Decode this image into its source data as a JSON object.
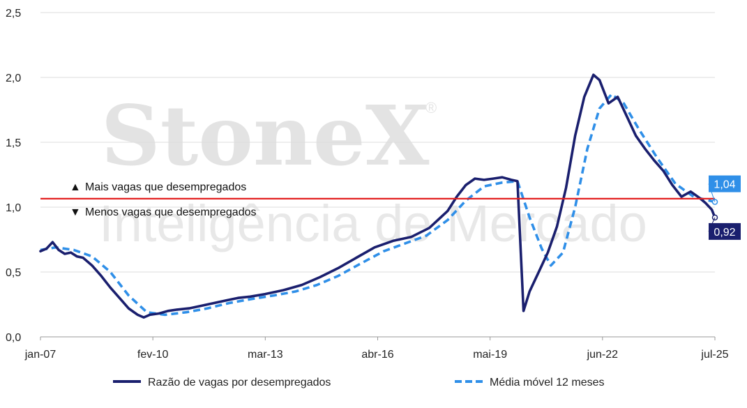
{
  "chart_data": {
    "type": "line",
    "title": "",
    "xlabel": "",
    "ylabel": "",
    "ylim": [
      0,
      2.5
    ],
    "y_ticks": [
      "0,0",
      "0,5",
      "1,0",
      "1,5",
      "2,0",
      "2,5"
    ],
    "x_ticks": [
      "jan-07",
      "fev-10",
      "mar-13",
      "abr-16",
      "mai-19",
      "jun-22",
      "jul-25"
    ],
    "grid": "horizontal",
    "legend_position": "bottom",
    "series": [
      {
        "name": "Razão de vagas por desempregados",
        "color": "#1a1f6e",
        "style": "solid",
        "points": [
          [
            "2007-01",
            0.66
          ],
          [
            "2007-03",
            0.68
          ],
          [
            "2007-05",
            0.73
          ],
          [
            "2007-07",
            0.67
          ],
          [
            "2007-09",
            0.64
          ],
          [
            "2007-11",
            0.65
          ],
          [
            "2008-01",
            0.62
          ],
          [
            "2008-03",
            0.61
          ],
          [
            "2008-06",
            0.55
          ],
          [
            "2008-09",
            0.47
          ],
          [
            "2008-12",
            0.38
          ],
          [
            "2009-03",
            0.3
          ],
          [
            "2009-06",
            0.22
          ],
          [
            "2009-09",
            0.17
          ],
          [
            "2009-11",
            0.15
          ],
          [
            "2010-01",
            0.17
          ],
          [
            "2010-04",
            0.18
          ],
          [
            "2010-07",
            0.2
          ],
          [
            "2010-10",
            0.21
          ],
          [
            "2011-02",
            0.22
          ],
          [
            "2011-06",
            0.24
          ],
          [
            "2011-10",
            0.26
          ],
          [
            "2012-02",
            0.28
          ],
          [
            "2012-06",
            0.3
          ],
          [
            "2012-10",
            0.31
          ],
          [
            "2013-03",
            0.33
          ],
          [
            "2013-09",
            0.36
          ],
          [
            "2014-03",
            0.4
          ],
          [
            "2014-09",
            0.46
          ],
          [
            "2015-03",
            0.53
          ],
          [
            "2015-09",
            0.61
          ],
          [
            "2016-03",
            0.69
          ],
          [
            "2016-09",
            0.74
          ],
          [
            "2017-03",
            0.77
          ],
          [
            "2017-09",
            0.84
          ],
          [
            "2018-03",
            0.97
          ],
          [
            "2018-06",
            1.08
          ],
          [
            "2018-09",
            1.17
          ],
          [
            "2018-12",
            1.22
          ],
          [
            "2019-03",
            1.21
          ],
          [
            "2019-06",
            1.22
          ],
          [
            "2019-09",
            1.23
          ],
          [
            "2019-12",
            1.21
          ],
          [
            "2020-02",
            1.2
          ],
          [
            "2020-04",
            0.2
          ],
          [
            "2020-06",
            0.35
          ],
          [
            "2020-09",
            0.5
          ],
          [
            "2020-12",
            0.65
          ],
          [
            "2021-03",
            0.85
          ],
          [
            "2021-06",
            1.15
          ],
          [
            "2021-09",
            1.55
          ],
          [
            "2021-12",
            1.85
          ],
          [
            "2022-03",
            2.02
          ],
          [
            "2022-05",
            1.98
          ],
          [
            "2022-08",
            1.8
          ],
          [
            "2022-11",
            1.85
          ],
          [
            "2023-02",
            1.7
          ],
          [
            "2023-05",
            1.55
          ],
          [
            "2023-08",
            1.45
          ],
          [
            "2023-11",
            1.36
          ],
          [
            "2024-02",
            1.28
          ],
          [
            "2024-05",
            1.17
          ],
          [
            "2024-08",
            1.08
          ],
          [
            "2024-11",
            1.12
          ],
          [
            "2025-02",
            1.07
          ],
          [
            "2025-04",
            1.03
          ],
          [
            "2025-06",
            0.98
          ],
          [
            "2025-07",
            0.92
          ]
        ]
      },
      {
        "name": "Média móvel 12 meses",
        "color": "#2f8fe8",
        "style": "dashed",
        "points": [
          [
            "2007-01",
            0.67
          ],
          [
            "2007-06",
            0.69
          ],
          [
            "2007-12",
            0.67
          ],
          [
            "2008-06",
            0.62
          ],
          [
            "2008-12",
            0.5
          ],
          [
            "2009-06",
            0.32
          ],
          [
            "2009-12",
            0.19
          ],
          [
            "2010-06",
            0.17
          ],
          [
            "2011-01",
            0.19
          ],
          [
            "2011-08",
            0.22
          ],
          [
            "2012-03",
            0.26
          ],
          [
            "2012-10",
            0.29
          ],
          [
            "2013-06",
            0.32
          ],
          [
            "2014-01",
            0.35
          ],
          [
            "2014-08",
            0.4
          ],
          [
            "2015-03",
            0.47
          ],
          [
            "2015-10",
            0.56
          ],
          [
            "2016-06",
            0.66
          ],
          [
            "2017-01",
            0.72
          ],
          [
            "2017-08",
            0.78
          ],
          [
            "2018-03",
            0.9
          ],
          [
            "2018-09",
            1.05
          ],
          [
            "2019-03",
            1.16
          ],
          [
            "2019-09",
            1.19
          ],
          [
            "2020-02",
            1.2
          ],
          [
            "2020-06",
            0.92
          ],
          [
            "2020-10",
            0.68
          ],
          [
            "2021-01",
            0.55
          ],
          [
            "2021-05",
            0.65
          ],
          [
            "2021-09",
            1.0
          ],
          [
            "2022-01",
            1.45
          ],
          [
            "2022-05",
            1.76
          ],
          [
            "2022-09",
            1.87
          ],
          [
            "2023-01",
            1.8
          ],
          [
            "2023-06",
            1.6
          ],
          [
            "2023-12",
            1.38
          ],
          [
            "2024-06",
            1.18
          ],
          [
            "2024-12",
            1.08
          ],
          [
            "2025-07",
            1.04
          ]
        ]
      }
    ],
    "reference_line": {
      "value": 1.065,
      "color": "#e32020",
      "label_above": "Mais vagas que desempregados",
      "label_below": "Menos vagas que desempregados",
      "marker_above": "▲",
      "marker_below": "▼"
    },
    "end_labels": [
      {
        "series": 1,
        "text": "1,04",
        "color": "#2f8fe8"
      },
      {
        "series": 0,
        "text": "0,92",
        "color": "#1a1f6e"
      }
    ]
  },
  "watermark": {
    "brand": "StoneX",
    "registered": "®",
    "subtitle": "Inteligência de Mercado"
  }
}
